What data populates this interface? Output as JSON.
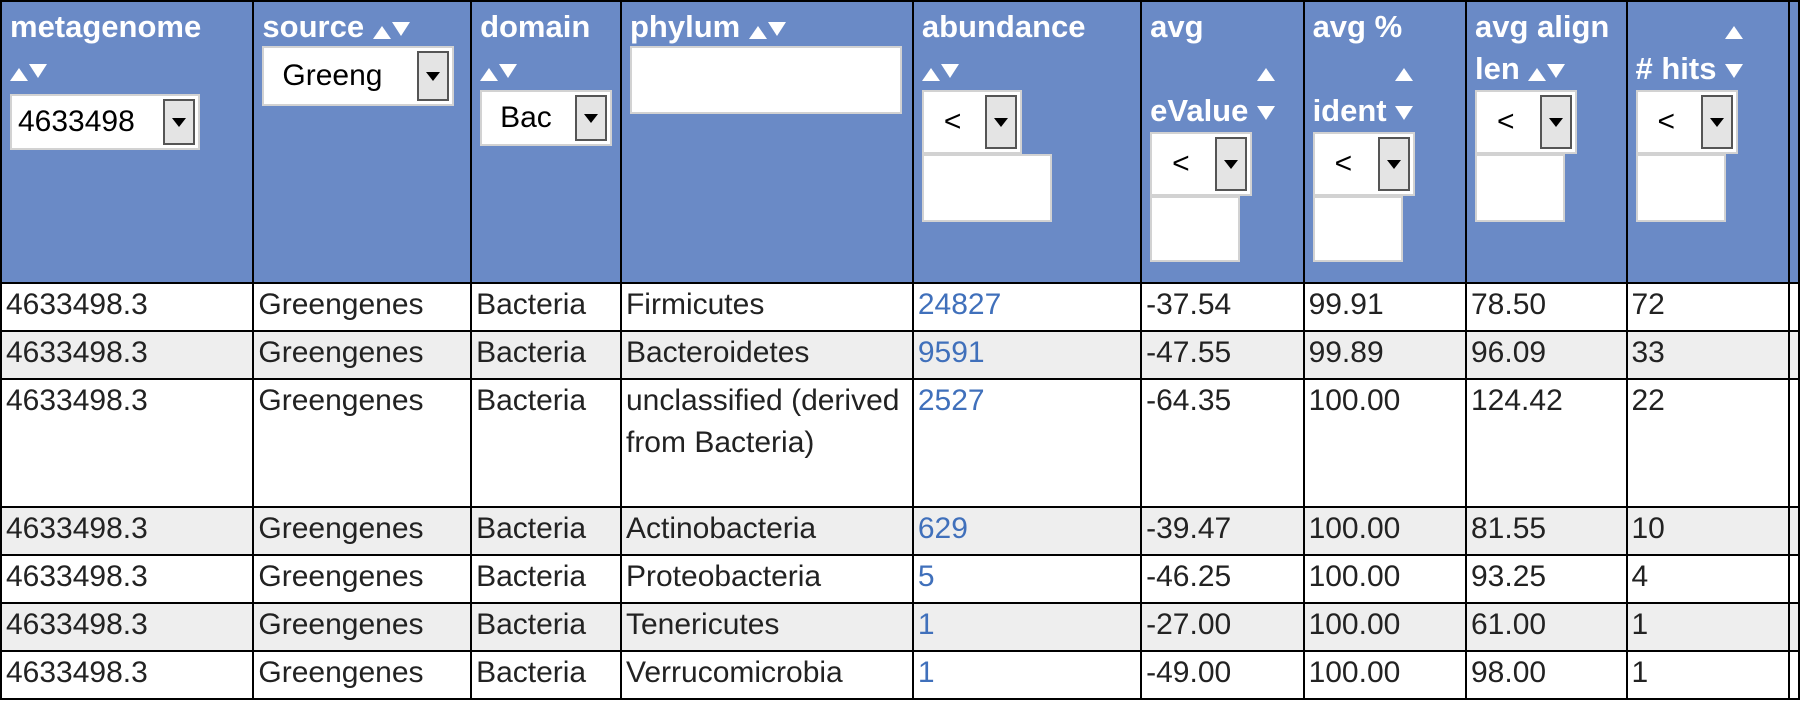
{
  "headers": {
    "metagenome": "metagenome",
    "source": "source",
    "domain": "domain",
    "phylum": "phylum",
    "abundance": "abundance",
    "avg_evalue": "avg eValue",
    "avg_ident": "avg % ident",
    "avg_align_len": "avg align len",
    "hits": "# hits"
  },
  "filters": {
    "metagenome_select": "4633498",
    "source_select": "Greeng",
    "domain_select": "Bac",
    "phylum_input": "",
    "abundance_op": "<",
    "abundance_value": "",
    "evalue_op": "<",
    "evalue_value": "",
    "ident_op": "<",
    "ident_value": "",
    "align_op": "<",
    "align_value": "",
    "hits_op": "<",
    "hits_value": ""
  },
  "rows": [
    {
      "metagenome": "4633498.3",
      "source": "Greengenes",
      "domain": "Bacteria",
      "phylum": "Firmicutes",
      "abundance": "24827",
      "evalue": "-37.54",
      "ident": "99.91",
      "align": "78.50",
      "hits": "72"
    },
    {
      "metagenome": "4633498.3",
      "source": "Greengenes",
      "domain": "Bacteria",
      "phylum": "Bacteroidetes",
      "abundance": "9591",
      "evalue": "-47.55",
      "ident": "99.89",
      "align": "96.09",
      "hits": "33"
    },
    {
      "metagenome": "4633498.3",
      "source": "Greengenes",
      "domain": "Bacteria",
      "phylum": "unclassified (derived from Bacteria)",
      "abundance": "2527",
      "evalue": "-64.35",
      "ident": "100.00",
      "align": "124.42",
      "hits": "22"
    },
    {
      "metagenome": "4633498.3",
      "source": "Greengenes",
      "domain": "Bacteria",
      "phylum": "Actinobacteria",
      "abundance": "629",
      "evalue": "-39.47",
      "ident": "100.00",
      "align": "81.55",
      "hits": "10"
    },
    {
      "metagenome": "4633498.3",
      "source": "Greengenes",
      "domain": "Bacteria",
      "phylum": "Proteobacteria",
      "abundance": "5",
      "evalue": "-46.25",
      "ident": "100.00",
      "align": "93.25",
      "hits": "4"
    },
    {
      "metagenome": "4633498.3",
      "source": "Greengenes",
      "domain": "Bacteria",
      "phylum": "Tenericutes",
      "abundance": "1",
      "evalue": "-27.00",
      "ident": "100.00",
      "align": "61.00",
      "hits": "1"
    },
    {
      "metagenome": "4633498.3",
      "source": "Greengenes",
      "domain": "Bacteria",
      "phylum": "Verrucomicrobia",
      "abundance": "1",
      "evalue": "-49.00",
      "ident": "100.00",
      "align": "98.00",
      "hits": "1"
    }
  ],
  "colors": {
    "header_bg": "#6a8ac6",
    "row_alt_bg": "#eeeeee",
    "link": "#4070bb"
  }
}
